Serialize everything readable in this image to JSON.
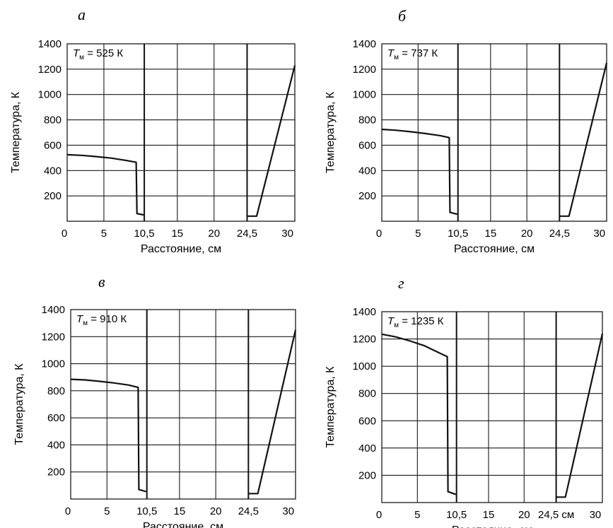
{
  "chart_data": [
    {
      "type": "line",
      "panel_letter": "а",
      "tm_symbol": "T",
      "tm_sub": "м",
      "tm_value": " = 525 К",
      "xlabel": "Расстояние, см",
      "ylabel": "Температура, К",
      "xlim": [
        0,
        31
      ],
      "ylim": [
        0,
        1400
      ],
      "xticks": [
        "0",
        "5",
        "10,5",
        "15",
        "20",
        "24,5",
        "30"
      ],
      "yticks": [
        "200",
        "400",
        "600",
        "800",
        "1000",
        "1200",
        "1400"
      ],
      "separators_x": [
        10.5,
        24.5
      ],
      "series": [
        {
          "x": [
            0,
            2,
            4,
            6,
            8,
            9.4,
            9.5,
            10.4
          ],
          "y": [
            525,
            520,
            510,
            498,
            480,
            465,
            60,
            50
          ]
        },
        {
          "x": [
            24.5,
            25.8,
            31
          ],
          "y": [
            40,
            40,
            1230
          ]
        }
      ]
    },
    {
      "type": "line",
      "panel_letter": "б",
      "tm_symbol": "T",
      "tm_sub": "м",
      "tm_value": " = 737 К",
      "xlabel": "Расстояние, см",
      "ylabel": "Температура, К",
      "xlim": [
        0,
        31
      ],
      "ylim": [
        0,
        1400
      ],
      "xticks": [
        "0",
        "5",
        "10,5",
        "15",
        "20",
        "24,5",
        "30"
      ],
      "yticks": [
        "200",
        "400",
        "600",
        "800",
        "1000",
        "1200",
        "1400"
      ],
      "separators_x": [
        10.5,
        24.5
      ],
      "series": [
        {
          "x": [
            0,
            2,
            4,
            6,
            8,
            9.3,
            9.4,
            10.4
          ],
          "y": [
            725,
            718,
            706,
            692,
            676,
            660,
            70,
            55
          ]
        },
        {
          "x": [
            24.5,
            25.8,
            31
          ],
          "y": [
            40,
            40,
            1250
          ]
        }
      ]
    },
    {
      "type": "line",
      "panel_letter": "в",
      "tm_symbol": "T",
      "tm_sub": "м",
      "tm_value": " = 910 К",
      "xlabel": "Расстояние, см",
      "ylabel": "Температура, К",
      "xlim": [
        0,
        31
      ],
      "ylim": [
        0,
        1400
      ],
      "xticks": [
        "0",
        "5",
        "10,5",
        "15",
        "20",
        "24,5",
        "30"
      ],
      "yticks": [
        "200",
        "400",
        "600",
        "800",
        "1000",
        "1200",
        "1400"
      ],
      "separators_x": [
        10.5,
        24.5
      ],
      "series": [
        {
          "x": [
            0,
            2,
            4,
            6,
            8,
            9.3,
            9.4,
            10.4
          ],
          "y": [
            885,
            880,
            870,
            858,
            842,
            825,
            70,
            55
          ]
        },
        {
          "x": [
            24.5,
            25.8,
            31
          ],
          "y": [
            40,
            40,
            1250
          ]
        }
      ]
    },
    {
      "type": "line",
      "panel_letter": "г",
      "tm_symbol": "T",
      "tm_sub": "м",
      "tm_value": " = 1235 К",
      "xlabel": "Расстояние, см",
      "ylabel": "Температура, К",
      "xlim": [
        0,
        31
      ],
      "ylim": [
        0,
        1400
      ],
      "xticks": [
        "0",
        "5",
        "10,5",
        "15",
        "20",
        "24,5 см",
        "30"
      ],
      "yticks": [
        "200",
        "400",
        "600",
        "800",
        "1000",
        "1200",
        "1400"
      ],
      "separators_x": [
        10.5,
        24.5
      ],
      "series": [
        {
          "x": [
            0,
            2,
            4,
            6,
            8,
            9.2,
            9.3,
            10.4
          ],
          "y": [
            1235,
            1215,
            1185,
            1150,
            1100,
            1070,
            80,
            60
          ]
        },
        {
          "x": [
            24.5,
            25.8,
            31
          ],
          "y": [
            40,
            40,
            1240
          ]
        }
      ]
    }
  ]
}
